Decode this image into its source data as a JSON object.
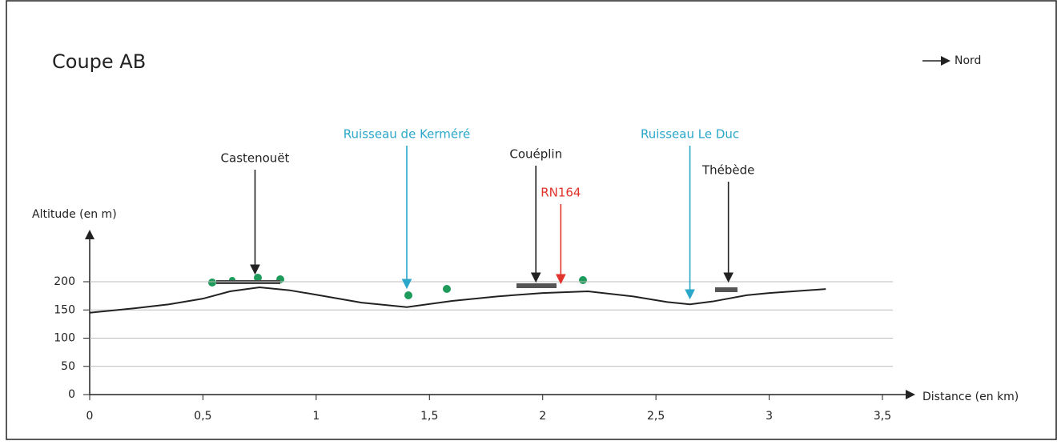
{
  "chart_data": {
    "type": "line",
    "title": "Coupe AB",
    "north_label": "Nord",
    "y_label": "Altitude (en m)",
    "x_label": "Distance (en km)",
    "series": [
      {
        "color": "#222222",
        "x": [
          0,
          0.2,
          0.35,
          0.5,
          0.62,
          0.75,
          0.88,
          1.0,
          1.2,
          1.4,
          1.6,
          1.8,
          2.0,
          2.2,
          2.4,
          2.55,
          2.65,
          2.75,
          2.9,
          3.0,
          3.25
        ],
        "values": [
          145,
          153,
          160,
          170,
          183,
          190,
          185,
          177,
          163,
          155,
          166,
          174,
          180,
          183,
          174,
          164,
          160,
          165,
          176,
          180,
          187
        ]
      }
    ],
    "xlim": [
      0,
      3.5
    ],
    "ylim": [
      0,
      200
    ],
    "xticks": [
      {
        "value": 0,
        "label": "0"
      },
      {
        "value": 0.5,
        "label": "0,5"
      },
      {
        "value": 1,
        "label": "1"
      },
      {
        "value": 1.5,
        "label": "1,5"
      },
      {
        "value": 2,
        "label": "2"
      },
      {
        "value": 2.5,
        "label": "2,5"
      },
      {
        "value": 3,
        "label": "3"
      },
      {
        "value": 3.5,
        "label": "3,5"
      }
    ],
    "yticks": [
      0,
      50,
      100,
      150,
      200
    ],
    "grid": true,
    "annotations": [
      {
        "text": "Castenouët",
        "x": 0.73,
        "color": "#222222"
      },
      {
        "text": "Ruisseau de Kerméré",
        "x": 1.4,
        "color": "#2aa7c9"
      },
      {
        "text": "Couéplin",
        "x": 1.97,
        "color": "#222222"
      },
      {
        "text": "RN164",
        "x": 2.08,
        "color": "#e0332b"
      },
      {
        "text": "Ruisseau Le Duc",
        "x": 2.65,
        "color": "#2aa7c9"
      },
      {
        "text": "Thébède",
        "x": 2.82,
        "color": "#222222"
      }
    ]
  }
}
